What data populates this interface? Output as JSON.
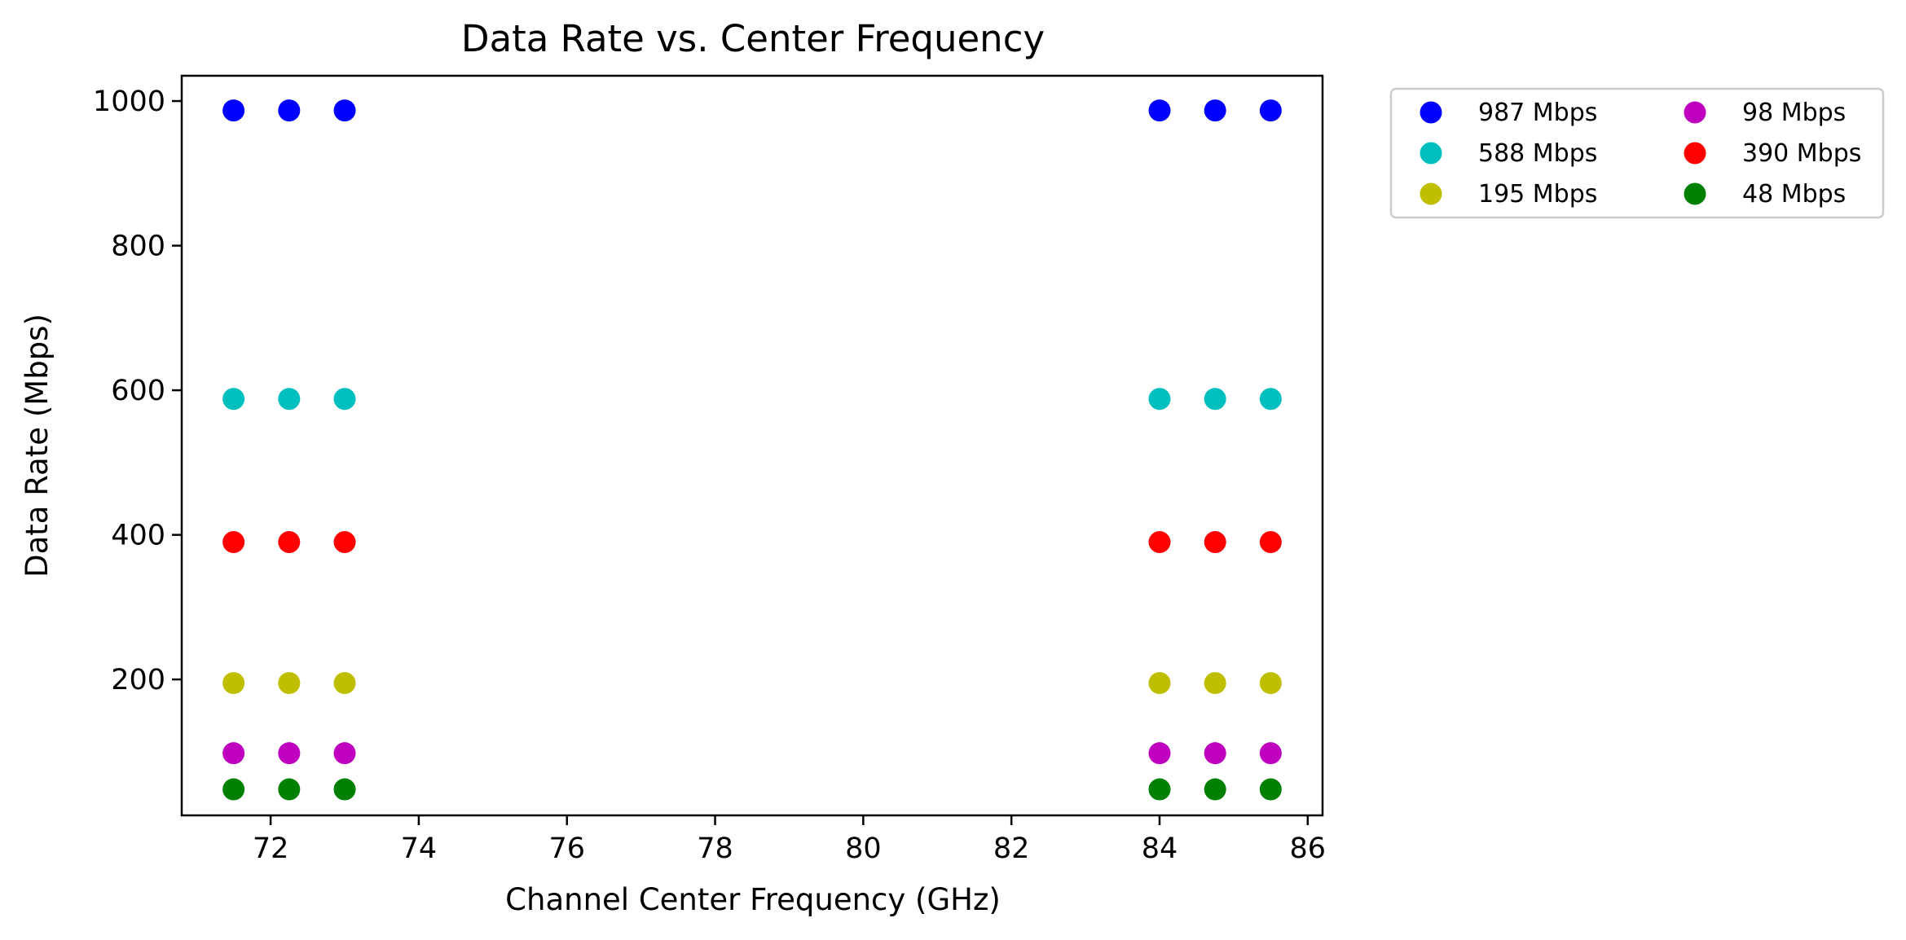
{
  "chart_data": {
    "type": "scatter",
    "title": "Data Rate vs. Center Frequency",
    "xlabel": "Channel Center Frequency (GHz)",
    "ylabel": "Data Rate (Mbps)",
    "xlim": [
      70.8,
      86.2
    ],
    "ylim": [
      12,
      1035
    ],
    "xticks": [
      72,
      74,
      76,
      78,
      80,
      82,
      84,
      86
    ],
    "yticks": [
      200,
      400,
      600,
      800,
      1000
    ],
    "grid": false,
    "legend_position": "outside-top-right",
    "legend_columns": 2,
    "x": [
      71.5,
      72.25,
      73.0,
      84.0,
      84.75,
      85.5
    ],
    "series": [
      {
        "name": "987 Mbps",
        "color": "#0000ff",
        "y": 987
      },
      {
        "name": "588 Mbps",
        "color": "#00bfbf",
        "y": 588
      },
      {
        "name": "195 Mbps",
        "color": "#bfbf00",
        "y": 195
      },
      {
        "name": "98 Mbps",
        "color": "#bf00bf",
        "y": 98
      },
      {
        "name": "390 Mbps",
        "color": "#ff0000",
        "y": 390
      },
      {
        "name": "48 Mbps",
        "color": "#008000",
        "y": 48
      }
    ]
  }
}
